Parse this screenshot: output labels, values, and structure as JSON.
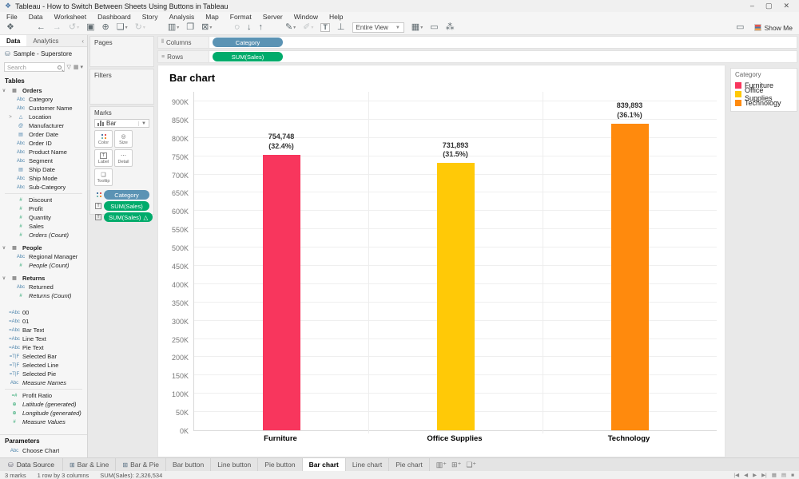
{
  "window": {
    "title": "Tableau - How to Switch Between Sheets Using Buttons in Tableau",
    "controls": [
      {
        "name": "minimize",
        "glyph": "–"
      },
      {
        "name": "maximize",
        "glyph": "▢"
      },
      {
        "name": "close",
        "glyph": "✕"
      }
    ]
  },
  "menu": {
    "items": [
      "File",
      "Data",
      "Worksheet",
      "Dashboard",
      "Story",
      "Analysis",
      "Map",
      "Format",
      "Server",
      "Window",
      "Help"
    ]
  },
  "toolbar": {
    "items": [
      {
        "name": "tableau-logo",
        "glyph": "❖",
        "sep_after": true
      },
      {
        "name": "back",
        "glyph": "←"
      },
      {
        "name": "forward",
        "glyph": "→",
        "disabled": true
      },
      {
        "name": "replay",
        "glyph": "↺",
        "dropdown": true,
        "disabled": true
      },
      {
        "name": "save",
        "glyph": "▣"
      },
      {
        "name": "add-data-source",
        "glyph": "⊕"
      },
      {
        "name": "new-file",
        "glyph": "❏",
        "dropdown": true
      },
      {
        "name": "auto-update",
        "glyph": "↻",
        "dropdown": true,
        "disabled": true,
        "sep_after": true
      },
      {
        "name": "new-worksheet",
        "glyph": "▥",
        "dropdown": true
      },
      {
        "name": "duplicate",
        "glyph": "❐"
      },
      {
        "name": "clear-sheet",
        "glyph": "⊠",
        "dropdown": true,
        "sep_after": true
      },
      {
        "name": "group-members",
        "glyph": "◌"
      },
      {
        "name": "sort-ascending",
        "glyph": "↓"
      },
      {
        "name": "sort-descending",
        "glyph": "↑",
        "sep_after": true
      },
      {
        "name": "highlight",
        "glyph": "✎",
        "dropdown": true
      },
      {
        "name": "format-workbook",
        "glyph": "✐",
        "dropdown": true,
        "disabled": true
      },
      {
        "name": "show-mark-labels",
        "glyph": "T",
        "boxed": true
      },
      {
        "name": "fix-axes",
        "glyph": "⊥"
      },
      {
        "name": "fit",
        "type": "select",
        "label": "Entire View"
      },
      {
        "name": "show-hide-cards",
        "glyph": "▦",
        "dropdown": true
      },
      {
        "name": "presentation-mode",
        "glyph": "▭"
      },
      {
        "name": "share",
        "glyph": "⁂"
      }
    ],
    "tooltip_button_glyph": "▭",
    "show_me": "Show Me"
  },
  "data_pane": {
    "tabs": [
      "Data",
      "Analytics"
    ],
    "collapse_glyph": "‹",
    "connection": "Sample - Superstore",
    "search_placeholder": "Search",
    "tables_header": "Tables",
    "groups": [
      {
        "name": "Orders",
        "fields": [
          {
            "icon": "abc",
            "label": "Category"
          },
          {
            "icon": "abc",
            "label": "Customer Name"
          },
          {
            "icon": "geo",
            "label": "Location",
            "expander": true
          },
          {
            "icon": "clip",
            "label": "Manufacturer"
          },
          {
            "icon": "date",
            "label": "Order Date"
          },
          {
            "icon": "abc",
            "label": "Order ID"
          },
          {
            "icon": "abc",
            "label": "Product Name"
          },
          {
            "icon": "abc",
            "label": "Segment"
          },
          {
            "icon": "date",
            "label": "Ship Date"
          },
          {
            "icon": "abc",
            "label": "Ship Mode"
          },
          {
            "icon": "abc",
            "label": "Sub-Category",
            "divider_after": true
          },
          {
            "icon": "num",
            "label": "Discount"
          },
          {
            "icon": "num",
            "label": "Profit"
          },
          {
            "icon": "num",
            "label": "Quantity"
          },
          {
            "icon": "num",
            "label": "Sales"
          },
          {
            "icon": "num",
            "label": "Orders (Count)",
            "italic": true
          }
        ]
      },
      {
        "name": "People",
        "fields": [
          {
            "icon": "abc",
            "label": "Regional Manager"
          },
          {
            "icon": "num",
            "label": "People (Count)",
            "italic": true
          }
        ]
      },
      {
        "name": "Returns",
        "fields": [
          {
            "icon": "abc",
            "label": "Returned"
          },
          {
            "icon": "num",
            "label": "Returns (Count)",
            "italic": true
          }
        ]
      }
    ],
    "loose_fields": [
      {
        "icon": "abc-calc",
        "label": "00"
      },
      {
        "icon": "abc-calc",
        "label": "01"
      },
      {
        "icon": "abc-calc",
        "label": "Bar Text"
      },
      {
        "icon": "abc-calc",
        "label": "Line Text"
      },
      {
        "icon": "abc-calc",
        "label": "Pie Text"
      },
      {
        "icon": "tf-calc",
        "label": "Selected Bar"
      },
      {
        "icon": "tf-calc",
        "label": "Selected Line"
      },
      {
        "icon": "tf-calc",
        "label": "Selected Pie"
      },
      {
        "icon": "abc",
        "label": "Measure Names",
        "italic": true,
        "divider_after": true
      },
      {
        "icon": "num-calc",
        "label": "Profit Ratio"
      },
      {
        "icon": "globe",
        "label": "Latitude (generated)",
        "italic": true
      },
      {
        "icon": "globe",
        "label": "Longitude (generated)",
        "italic": true
      },
      {
        "icon": "num",
        "label": "Measure Values",
        "italic": true
      }
    ],
    "parameters_header": "Parameters",
    "parameters": [
      {
        "icon": "abc",
        "label": "Choose Chart"
      }
    ],
    "icon_glyphs": {
      "abc": "Abc",
      "abc-calc": "=Abc",
      "tf-calc": "=T|F",
      "num": "#",
      "num-calc": "=#",
      "date": "▤",
      "geo": "△",
      "clip": "@",
      "globe": "⊕",
      "table": "▦",
      "group-open": "∨",
      "expander": ">"
    }
  },
  "cards": {
    "pages_label": "Pages",
    "filters_label": "Filters",
    "marks": {
      "title": "Marks",
      "mark_type": "Bar",
      "buttons": [
        {
          "name": "color",
          "label": "Color",
          "icon": "color-dots"
        },
        {
          "name": "size",
          "label": "Size",
          "icon": "size-circle",
          "glyph": "◎"
        },
        {
          "name": "label",
          "label": "Label",
          "icon": "label-t",
          "glyph": "T"
        },
        {
          "name": "detail",
          "label": "Detail",
          "icon": "detail-dots",
          "glyph": "⋯"
        },
        {
          "name": "tooltip",
          "label": "Tooltip",
          "icon": "tooltip-bubble",
          "glyph": "❑"
        }
      ],
      "pills": [
        {
          "label": "Category",
          "kind": "dim",
          "prefix": "color-dots"
        },
        {
          "label": "SUM(Sales)",
          "kind": "meas",
          "prefix": "label-t"
        },
        {
          "label": "SUM(Sales)",
          "kind": "meas",
          "prefix": "label-t",
          "suffix": "△"
        }
      ]
    }
  },
  "shelves": {
    "columns_label": "Columns",
    "rows_label": "Rows",
    "columns_pills": [
      {
        "label": "Category",
        "kind": "dim"
      }
    ],
    "rows_pills": [
      {
        "label": "SUM(Sales)",
        "kind": "meas"
      }
    ]
  },
  "sheet": {
    "title": "Bar chart"
  },
  "chart_data": {
    "type": "bar",
    "title": "Bar chart",
    "categories": [
      "Furniture",
      "Office Supplies",
      "Technology"
    ],
    "values": [
      754748,
      731893,
      839893
    ],
    "value_labels": [
      "754,748",
      "731,893",
      "839,893"
    ],
    "percent_labels": [
      "(32.4%)",
      "(31.5%)",
      "(36.1%)"
    ],
    "colors": [
      "#F8365D",
      "#FFC907",
      "#FF8A0D"
    ],
    "xlabel": "",
    "ylabel": "",
    "ylim": [
      0,
      900000
    ],
    "ytick_step": 50000,
    "ytick_labels": [
      "0K",
      "50K",
      "100K",
      "150K",
      "200K",
      "250K",
      "300K",
      "350K",
      "400K",
      "450K",
      "500K",
      "550K",
      "600K",
      "650K",
      "700K",
      "750K",
      "800K",
      "850K",
      "900K"
    ],
    "grid": true,
    "legend": {
      "title": "Category",
      "position": "right",
      "entries": [
        "Furniture",
        "Office Supplies",
        "Technology"
      ]
    }
  },
  "tabs_bar": {
    "data_source": "Data Source",
    "sheets": [
      {
        "label": "Bar & Line",
        "icon": "dashboard"
      },
      {
        "label": "Bar & Pie",
        "icon": "dashboard"
      },
      {
        "label": "Bar button"
      },
      {
        "label": "Line button"
      },
      {
        "label": "Pie button"
      },
      {
        "label": "Bar chart",
        "active": true
      },
      {
        "label": "Line chart"
      },
      {
        "label": "Pie chart"
      }
    ],
    "new_buttons": [
      {
        "name": "new-worksheet",
        "glyph": "▥⁺"
      },
      {
        "name": "new-dashboard",
        "glyph": "⊞⁺"
      },
      {
        "name": "new-story",
        "glyph": "❏⁺"
      }
    ]
  },
  "status_bar": {
    "marks": "3 marks",
    "size": "1 row by 3 columns",
    "aggregate": "SUM(Sales): 2,326,534",
    "nav_glyphs": [
      "|◀",
      "◀",
      "▶",
      "▶|"
    ],
    "view_glyphs": [
      "▦",
      "▤",
      "■"
    ]
  }
}
